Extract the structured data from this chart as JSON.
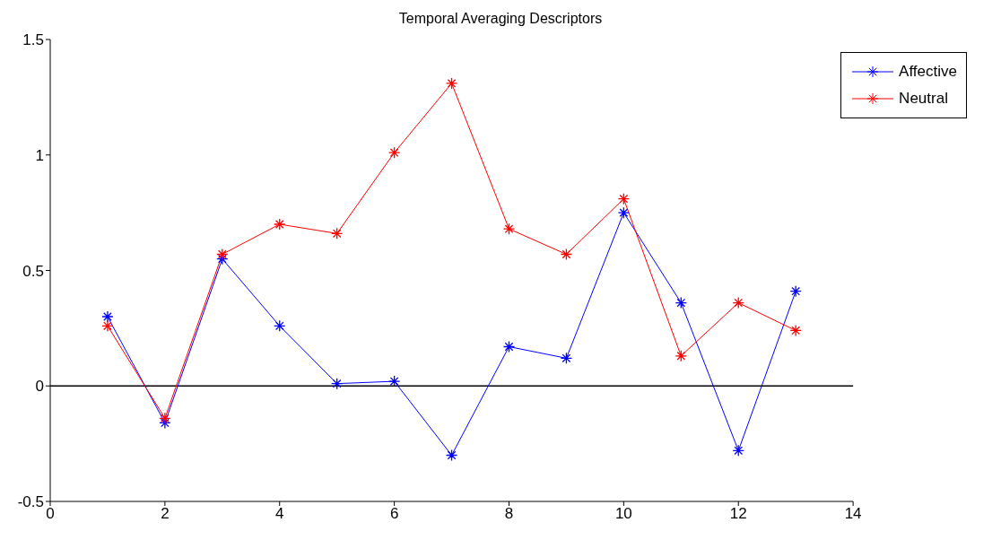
{
  "chart_data": {
    "type": "line",
    "title": "Temporal Averaging Descriptors",
    "x": [
      1,
      2,
      3,
      4,
      5,
      6,
      7,
      8,
      9,
      10,
      11,
      12,
      13
    ],
    "series": [
      {
        "name": "Affective",
        "color": "#0000ff",
        "values": [
          0.3,
          -0.16,
          0.55,
          0.26,
          0.01,
          0.02,
          -0.3,
          0.17,
          0.12,
          0.75,
          0.36,
          -0.28,
          0.41
        ]
      },
      {
        "name": "Neutral",
        "color": "#ff0000",
        "values": [
          0.26,
          -0.14,
          0.57,
          0.7,
          0.66,
          1.01,
          1.31,
          0.68,
          0.57,
          0.81,
          0.13,
          0.36,
          0.24
        ]
      }
    ],
    "xlim": [
      0,
      14
    ],
    "xticks": [
      0,
      2,
      4,
      6,
      8,
      10,
      12,
      14
    ],
    "ylim": [
      -0.5,
      1.5
    ],
    "yticks": [
      -0.5,
      0,
      0.5,
      1,
      1.5
    ],
    "ref_lines": [
      {
        "axis": "y",
        "value": 0,
        "color": "#000000"
      }
    ],
    "grid": false,
    "legend": "top right",
    "marker": "cross",
    "line_style": "solid"
  }
}
